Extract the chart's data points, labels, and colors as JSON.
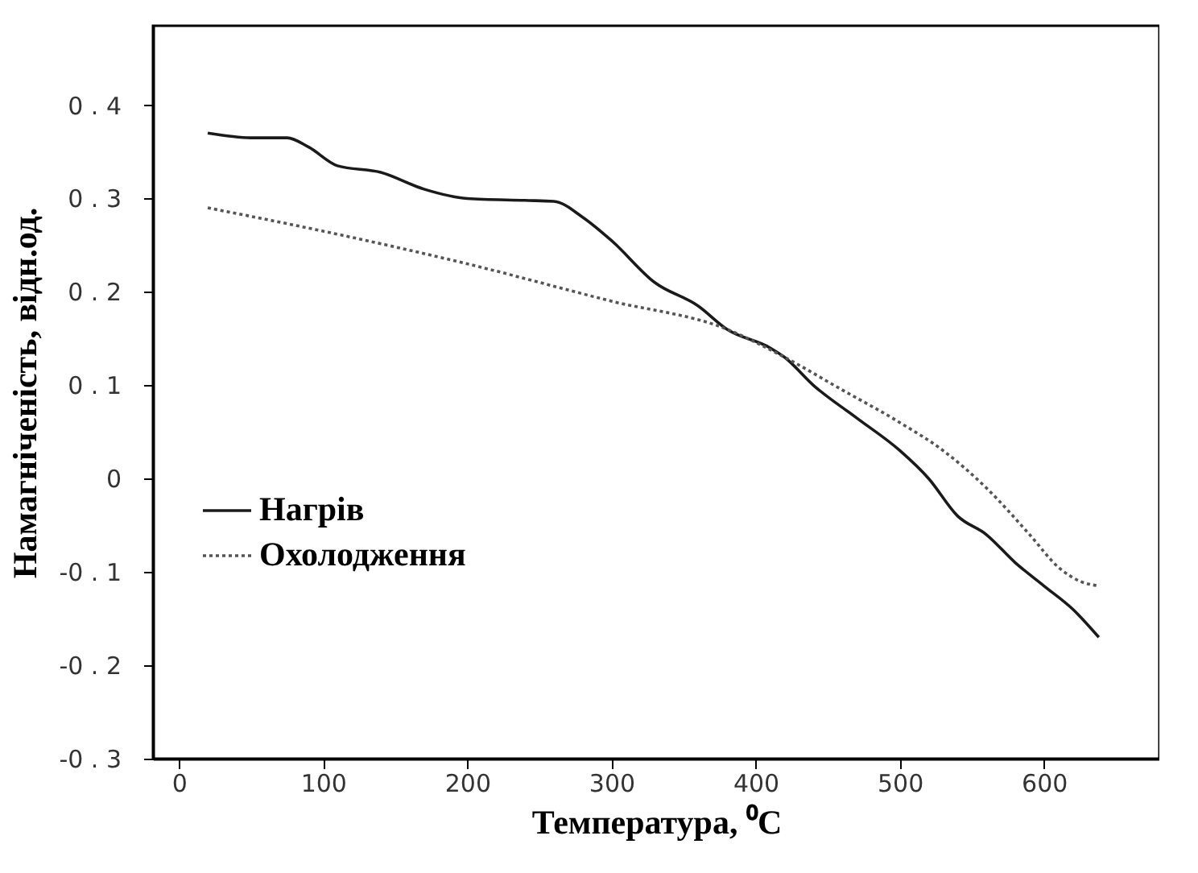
{
  "chart_data": {
    "type": "line",
    "xlabel": "Температура, ⁰C",
    "ylabel": "Намагніченість, відн.од.",
    "xlim": [
      -18,
      680
    ],
    "xticks": [
      0,
      100,
      200,
      300,
      400,
      500,
      600
    ],
    "ylim": [
      -0.3,
      0.485
    ],
    "yticks": [
      -0.3,
      -0.2,
      -0.1,
      0,
      0.1,
      0.2,
      0.3,
      0.4
    ],
    "grid": false,
    "legend": "bottom left",
    "marker": "none",
    "series": [
      {
        "name": "Нагрів",
        "color": "#1a1a1a",
        "line_style": "solid",
        "x": [
          20,
          50,
          75,
          90,
          110,
          140,
          170,
          200,
          240,
          260,
          280,
          300,
          330,
          360,
          380,
          410,
          420,
          440,
          470,
          500,
          520,
          540,
          560,
          580,
          600,
          620,
          638
        ],
        "values": [
          0.37,
          0.365,
          0.365,
          0.355,
          0.335,
          0.328,
          0.31,
          0.3,
          0.298,
          0.297,
          0.28,
          0.255,
          0.21,
          0.185,
          0.16,
          0.14,
          0.13,
          0.1,
          0.065,
          0.03,
          0.0,
          -0.04,
          -0.06,
          -0.09,
          -0.115,
          -0.14,
          -0.17
        ]
      },
      {
        "name": "Охолодження",
        "color": "#555555",
        "line_style": "dotted",
        "x": [
          20,
          100,
          200,
          300,
          380,
          420,
          460,
          500,
          530,
          560,
          590,
          610,
          625,
          638
        ],
        "values": [
          0.29,
          0.265,
          0.23,
          0.19,
          0.16,
          0.13,
          0.095,
          0.06,
          0.03,
          -0.01,
          -0.06,
          -0.095,
          -0.11,
          -0.115
        ]
      }
    ]
  }
}
